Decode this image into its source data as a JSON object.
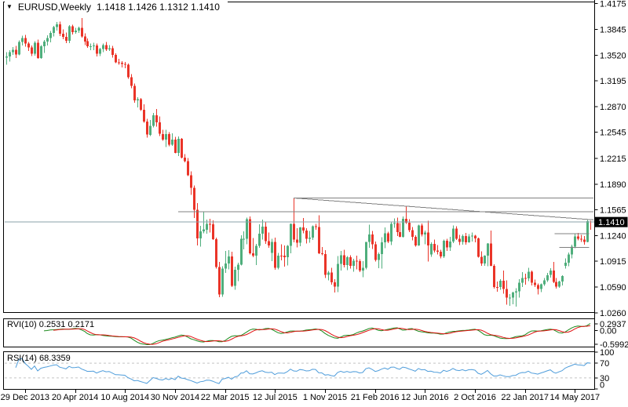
{
  "header": {
    "symbol_timeframe": "EURUSD,Weekly",
    "ohlc": "1.1418 1.1426 1.1312 1.1410"
  },
  "colors": {
    "bull": "#4fae7c",
    "bear": "#ea3428",
    "rvi_main": "#1d8a1d",
    "rvi_signal": "#e01010",
    "rsi_line": "#4f9ddb",
    "level_dash": "#c4c4c4",
    "object_gray": "#808080",
    "price_line": "#8aa0aa",
    "tag_bg": "#000000",
    "tag_text": "#ffffff",
    "axis_text": "#000000"
  },
  "price_axis": {
    "ticks": [
      "1.4175",
      "1.3845",
      "1.3520",
      "1.3195",
      "1.2870",
      "1.2545",
      "1.2215",
      "1.1890",
      "1.1565",
      "1.1240",
      "1.0915",
      "1.0590",
      "1.0260"
    ],
    "current": "1.1410"
  },
  "time_axis": {
    "labels": [
      [
        6,
        "29 Dec 2013"
      ],
      [
        22,
        "20 Apr 2014"
      ],
      [
        38,
        "10 Aug 2014"
      ],
      [
        54,
        "30 Nov 2014"
      ],
      [
        70,
        "22 Mar 2015"
      ],
      [
        86,
        "12 Jul 2015"
      ],
      [
        102,
        "1 Nov 2015"
      ],
      [
        118,
        "21 Feb 2016"
      ],
      [
        134,
        "12 Jun 2016"
      ],
      [
        150,
        "2 Oct 2016"
      ],
      [
        166,
        "22 Jan 2017"
      ],
      [
        182,
        "14 May 2017"
      ]
    ]
  },
  "indicators": {
    "rvi": {
      "name": "RVI",
      "period": 10,
      "label": "RVI(10) 0.2531 0.2171",
      "main_value": "0.2531",
      "signal_value": "0.2171",
      "axis": [
        "0.2937",
        "0.00",
        "-0.5992"
      ]
    },
    "rsi": {
      "name": "RSI",
      "period": 14,
      "label": "RSI(14) 68.3359",
      "value": "68.3359",
      "axis": [
        "100",
        "70",
        "30",
        "0"
      ],
      "levels": [
        70,
        30
      ]
    }
  },
  "chart_data": {
    "type": "candlestick",
    "symbol": "EURUSD",
    "timeframe": "Weekly",
    "ylim": [
      1.026,
      1.4175
    ],
    "current_price": 1.141,
    "last_candle": {
      "open": 1.1418,
      "high": 1.1426,
      "low": 1.1312,
      "close": 1.141
    },
    "objects": [
      {
        "name": "resistance-hline-upper",
        "i1": 92,
        "i2": 188,
        "p1": 1.1715,
        "p2": 1.1715
      },
      {
        "name": "descending-trendline",
        "i1": 92,
        "i2": 188,
        "p1": 1.1714,
        "p2": 1.1438
      },
      {
        "name": "resistance-hline-mid",
        "i1": 55,
        "i2": 188,
        "p1": 1.154,
        "p2": 1.154
      },
      {
        "name": "short-hline-upper",
        "i1": 175.5,
        "i2": 186.5,
        "p1": 1.1262,
        "p2": 1.1262
      },
      {
        "name": "short-hline-lower",
        "i1": 177,
        "i2": 186.5,
        "p1": 1.109,
        "p2": 1.109
      }
    ],
    "candles": [
      [
        1.349,
        1.3558,
        1.34,
        1.3505
      ],
      [
        1.3505,
        1.3585,
        1.3442,
        1.356
      ],
      [
        1.356,
        1.3622,
        1.3523,
        1.359
      ],
      [
        1.359,
        1.364,
        1.3485,
        1.3528
      ],
      [
        1.3528,
        1.371,
        1.3518,
        1.369
      ],
      [
        1.369,
        1.377,
        1.3645,
        1.374
      ],
      [
        1.374,
        1.3777,
        1.363,
        1.367
      ],
      [
        1.367,
        1.3688,
        1.3572,
        1.3617
      ],
      [
        1.3617,
        1.3646,
        1.3508,
        1.354
      ],
      [
        1.354,
        1.3699,
        1.3517,
        1.3678
      ],
      [
        1.3678,
        1.3716,
        1.3475,
        1.3486
      ],
      [
        1.3486,
        1.3648,
        1.3477,
        1.3633
      ],
      [
        1.3633,
        1.3715,
        1.3551,
        1.3693
      ],
      [
        1.3693,
        1.3773,
        1.3643,
        1.3737
      ],
      [
        1.3737,
        1.3825,
        1.3685,
        1.3802
      ],
      [
        1.3802,
        1.3894,
        1.376,
        1.3875
      ],
      [
        1.3875,
        1.394,
        1.3833,
        1.391
      ],
      [
        1.391,
        1.3947,
        1.3765,
        1.3793
      ],
      [
        1.3793,
        1.3845,
        1.3725,
        1.3753
      ],
      [
        1.3753,
        1.3809,
        1.3672,
        1.3702
      ],
      [
        1.3702,
        1.3901,
        1.3673,
        1.3885
      ],
      [
        1.3885,
        1.3905,
        1.3781,
        1.3812
      ],
      [
        1.3812,
        1.3866,
        1.379,
        1.3833
      ],
      [
        1.3833,
        1.388,
        1.3802,
        1.3866
      ],
      [
        1.3866,
        1.3993,
        1.3745,
        1.376
      ],
      [
        1.376,
        1.3795,
        1.3648,
        1.3696
      ],
      [
        1.3696,
        1.3734,
        1.3615,
        1.3634
      ],
      [
        1.3634,
        1.3668,
        1.3586,
        1.3635
      ],
      [
        1.3635,
        1.3677,
        1.3585,
        1.3643
      ],
      [
        1.3643,
        1.367,
        1.3503,
        1.354
      ],
      [
        1.354,
        1.3614,
        1.3511,
        1.3599
      ],
      [
        1.3599,
        1.3667,
        1.3561,
        1.3649
      ],
      [
        1.3649,
        1.3687,
        1.3574,
        1.3593
      ],
      [
        1.3593,
        1.3651,
        1.3576,
        1.3607
      ],
      [
        1.3607,
        1.364,
        1.3491,
        1.3525
      ],
      [
        1.3525,
        1.3545,
        1.3421,
        1.343
      ],
      [
        1.343,
        1.3473,
        1.3403,
        1.3427
      ],
      [
        1.3427,
        1.3445,
        1.3367,
        1.341
      ],
      [
        1.341,
        1.3433,
        1.3358,
        1.34
      ],
      [
        1.34,
        1.3416,
        1.3221,
        1.3242
      ],
      [
        1.3242,
        1.328,
        1.3105,
        1.3133
      ],
      [
        1.3133,
        1.316,
        1.292,
        1.295
      ],
      [
        1.295,
        1.2988,
        1.286,
        1.2963
      ],
      [
        1.2963,
        1.2979,
        1.2813,
        1.283
      ],
      [
        1.283,
        1.2901,
        1.2665,
        1.2683
      ],
      [
        1.2683,
        1.2717,
        1.2477,
        1.2515
      ],
      [
        1.2515,
        1.2699,
        1.25,
        1.2627
      ],
      [
        1.2627,
        1.2792,
        1.2605,
        1.276
      ],
      [
        1.276,
        1.284,
        1.2615,
        1.267
      ],
      [
        1.267,
        1.2745,
        1.2497,
        1.2525
      ],
      [
        1.2525,
        1.2578,
        1.2439,
        1.2456
      ],
      [
        1.2456,
        1.2577,
        1.2358,
        1.2524
      ],
      [
        1.2524,
        1.2545,
        1.237,
        1.239
      ],
      [
        1.239,
        1.2532,
        1.2375,
        1.2452
      ],
      [
        1.2452,
        1.2486,
        1.228,
        1.2283
      ],
      [
        1.2283,
        1.2495,
        1.2247,
        1.2462
      ],
      [
        1.2462,
        1.2475,
        1.2216,
        1.2227
      ],
      [
        1.2227,
        1.2272,
        1.2165,
        1.218
      ],
      [
        1.218,
        1.2219,
        1.1992,
        1.2002
      ],
      [
        1.2002,
        1.2052,
        1.1754,
        1.1841
      ],
      [
        1.1841,
        1.1871,
        1.1461,
        1.1567
      ],
      [
        1.1567,
        1.165,
        1.1115,
        1.1205
      ],
      [
        1.1205,
        1.1363,
        1.1098,
        1.1293
      ],
      [
        1.1293,
        1.1534,
        1.127,
        1.1315
      ],
      [
        1.1315,
        1.1443,
        1.1263,
        1.1387
      ],
      [
        1.1387,
        1.145,
        1.1278,
        1.138
      ],
      [
        1.138,
        1.1429,
        1.1184,
        1.1192
      ],
      [
        1.1192,
        1.1212,
        1.0822,
        1.0843
      ],
      [
        1.0843,
        1.0906,
        1.0458,
        1.0496
      ],
      [
        1.0496,
        1.085,
        1.0462,
        1.0822
      ],
      [
        1.0822,
        1.1043,
        1.0767,
        1.0886
      ],
      [
        1.0886,
        1.1052,
        1.0813,
        1.0977
      ],
      [
        1.0977,
        1.1036,
        1.0588,
        1.0605
      ],
      [
        1.0605,
        1.0848,
        1.0552,
        1.0808
      ],
      [
        1.0808,
        1.0898,
        1.066,
        1.0872
      ],
      [
        1.0872,
        1.1245,
        1.086,
        1.1198
      ],
      [
        1.1198,
        1.129,
        1.1066,
        1.12
      ],
      [
        1.12,
        1.1467,
        1.1131,
        1.1448
      ],
      [
        1.1448,
        1.148,
        1.1,
        1.1015
      ],
      [
        1.1015,
        1.1208,
        1.0964,
        1.0986
      ],
      [
        1.0986,
        1.1135,
        1.0868,
        1.1108
      ],
      [
        1.1108,
        1.138,
        1.1086,
        1.1265
      ],
      [
        1.1265,
        1.144,
        1.1188,
        1.135
      ],
      [
        1.135,
        1.1412,
        1.1135,
        1.1167
      ],
      [
        1.1167,
        1.1278,
        1.1085,
        1.1115
      ],
      [
        1.102,
        1.1197,
        1.0916,
        1.1157
      ],
      [
        1.1157,
        1.1215,
        1.0808,
        1.083
      ],
      [
        1.083,
        1.1018,
        1.0809,
        1.0985
      ],
      [
        1.0985,
        1.1129,
        1.0925,
        1.0984
      ],
      [
        1.0984,
        1.1114,
        1.0848,
        1.0963
      ],
      [
        1.0963,
        1.1117,
        1.086,
        1.1107
      ],
      [
        1.1107,
        1.1393,
        1.1017,
        1.1387
      ],
      [
        1.1387,
        1.1714,
        1.1156,
        1.1188
      ],
      [
        1.1188,
        1.1332,
        1.1087,
        1.115
      ],
      [
        1.115,
        1.1346,
        1.1105,
        1.134
      ],
      [
        1.134,
        1.1461,
        1.1267,
        1.13
      ],
      [
        1.13,
        1.133,
        1.1138,
        1.1196
      ],
      [
        1.1196,
        1.1296,
        1.115,
        1.1215
      ],
      [
        1.1215,
        1.1367,
        1.1185,
        1.1358
      ],
      [
        1.1358,
        1.1387,
        1.131,
        1.1348
      ],
      [
        1.1348,
        1.1495,
        1.1005,
        1.1017
      ],
      [
        1.1017,
        1.1095,
        1.0988,
        1.1006
      ],
      [
        1.1006,
        1.1054,
        1.0704,
        1.0742
      ],
      [
        1.0742,
        1.079,
        1.0674,
        1.0774
      ],
      [
        1.0774,
        1.083,
        1.0617,
        1.0648
      ],
      [
        1.0648,
        1.0689,
        1.0521,
        1.0593
      ],
      [
        1.0593,
        1.0981,
        1.0524,
        1.088
      ],
      [
        1.088,
        1.1043,
        1.0796,
        1.0991
      ],
      [
        1.0991,
        1.106,
        1.0834,
        1.0866
      ],
      [
        1.0866,
        1.0982,
        1.0802,
        1.0965
      ],
      [
        1.0965,
        1.0989,
        1.0819,
        1.0856
      ],
      [
        1.0856,
        1.0947,
        1.078,
        1.0921
      ],
      [
        1.0921,
        1.0985,
        1.081,
        1.0916
      ],
      [
        1.0916,
        1.094,
        1.0777,
        1.0797
      ],
      [
        1.0797,
        1.0917,
        1.0711,
        1.0833
      ],
      [
        1.0833,
        1.116,
        1.081,
        1.1157
      ],
      [
        1.1157,
        1.1377,
        1.1085,
        1.1255
      ],
      [
        1.1255,
        1.1297,
        1.1068,
        1.113
      ],
      [
        1.113,
        1.1164,
        1.0912,
        1.0931
      ],
      [
        1.0931,
        1.1027,
        1.0825,
        1.1007
      ],
      [
        1.1007,
        1.1218,
        1.0823,
        1.1155
      ],
      [
        1.1155,
        1.1342,
        1.1077,
        1.1269
      ],
      [
        1.1269,
        1.1288,
        1.1144,
        1.1166
      ],
      [
        1.1166,
        1.1412,
        1.112,
        1.1385
      ],
      [
        1.1385,
        1.1454,
        1.1336,
        1.1398
      ],
      [
        1.1398,
        1.1465,
        1.1234,
        1.1283
      ],
      [
        1.1283,
        1.1398,
        1.1217,
        1.1224
      ],
      [
        1.1224,
        1.1479,
        1.1215,
        1.1451
      ],
      [
        1.1451,
        1.1616,
        1.1386,
        1.1403
      ],
      [
        1.1403,
        1.1447,
        1.1283,
        1.1306
      ],
      [
        1.1306,
        1.1349,
        1.118,
        1.1224
      ],
      [
        1.1224,
        1.1243,
        1.1097,
        1.1113
      ],
      [
        1.1113,
        1.1375,
        1.111,
        1.1366
      ],
      [
        1.1366,
        1.1394,
        1.1228,
        1.1252
      ],
      [
        1.1252,
        1.1304,
        1.1131,
        1.1277
      ],
      [
        1.1277,
        1.1428,
        1.0912,
        1.1116
      ],
      [
        1.1,
        1.1155,
        1.097,
        1.1136
      ],
      [
        1.1136,
        1.1186,
        1.1024,
        1.1051
      ],
      [
        1.1051,
        1.112,
        1.1001,
        1.1034
      ],
      [
        1.1034,
        1.1058,
        1.0952,
        1.0975
      ],
      [
        1.0975,
        1.1186,
        1.0955,
        1.1175
      ],
      [
        1.1175,
        1.1198,
        1.1046,
        1.1087
      ],
      [
        1.1087,
        1.1223,
        1.1043,
        1.1162
      ],
      [
        1.1162,
        1.1366,
        1.1144,
        1.1326
      ],
      [
        1.1326,
        1.1355,
        1.1182,
        1.1198
      ],
      [
        1.1198,
        1.125,
        1.1121,
        1.1157
      ],
      [
        1.1157,
        1.1253,
        1.1123,
        1.1234
      ],
      [
        1.1234,
        1.1271,
        1.1122,
        1.1155
      ],
      [
        1.1155,
        1.1258,
        1.1149,
        1.1226
      ],
      [
        1.1226,
        1.1279,
        1.1163,
        1.124
      ],
      [
        1.124,
        1.125,
        1.1152,
        1.1203
      ],
      [
        1.1203,
        1.1211,
        1.0962,
        1.0971
      ],
      [
        1.0971,
        1.104,
        1.0858,
        1.0885
      ],
      [
        1.0885,
        1.0992,
        1.0857,
        1.0986
      ],
      [
        1.0986,
        1.1143,
        1.0851,
        1.114
      ],
      [
        1.114,
        1.13,
        1.085,
        1.0854
      ],
      [
        1.0854,
        1.0874,
        1.0569,
        1.0588
      ],
      [
        1.0588,
        1.0658,
        1.053,
        1.0587
      ],
      [
        1.0587,
        1.0686,
        1.0551,
        1.0666
      ],
      [
        1.0666,
        1.0796,
        1.0505,
        1.0562
      ],
      [
        1.0562,
        1.067,
        1.0367,
        1.0452
      ],
      [
        1.0452,
        1.05,
        1.0352,
        1.0455
      ],
      [
        1.0455,
        1.0531,
        1.0372,
        1.0517
      ],
      [
        1.0517,
        1.0573,
        1.034,
        1.0532
      ],
      [
        1.0532,
        1.0685,
        1.0454,
        1.0643
      ],
      [
        1.0643,
        1.0775,
        1.0589,
        1.0702
      ],
      [
        1.0702,
        1.0755,
        1.062,
        1.0697
      ],
      [
        1.0697,
        1.0829,
        1.0661,
        1.0782
      ],
      [
        1.0782,
        1.0798,
        1.0608,
        1.0642
      ],
      [
        1.0642,
        1.068,
        1.059,
        1.0614
      ],
      [
        1.0614,
        1.0632,
        1.0494,
        1.0561
      ],
      [
        1.0561,
        1.0632,
        1.0525,
        1.0623
      ],
      [
        1.0623,
        1.07,
        1.0601,
        1.0672
      ],
      [
        1.0672,
        1.0769,
        1.0652,
        1.0739
      ],
      [
        1.0739,
        1.0828,
        1.0705,
        1.0797
      ],
      [
        1.0797,
        1.0906,
        1.0636,
        1.0652
      ],
      [
        1.0652,
        1.07,
        1.0569,
        1.0591
      ],
      [
        1.0591,
        1.0667,
        1.0578,
        1.0658
      ],
      [
        1.0658,
        1.0738,
        1.0608,
        1.0727
      ],
      [
        1.0855,
        1.0951,
        1.082,
        1.0895
      ],
      [
        1.0895,
        1.1023,
        1.0852,
        1.0998
      ],
      [
        1.0998,
        1.1122,
        1.095,
        1.1098
      ],
      [
        1.1098,
        1.1258,
        1.108,
        1.123
      ],
      [
        1.123,
        1.1272,
        1.1176,
        1.1196
      ],
      [
        1.1196,
        1.125,
        1.1158,
        1.1188
      ],
      [
        1.1188,
        1.1232,
        1.1122,
        1.116
      ],
      [
        1.116,
        1.1435,
        1.1152,
        1.142
      ],
      [
        1.1418,
        1.1426,
        1.1312,
        1.141
      ]
    ]
  }
}
